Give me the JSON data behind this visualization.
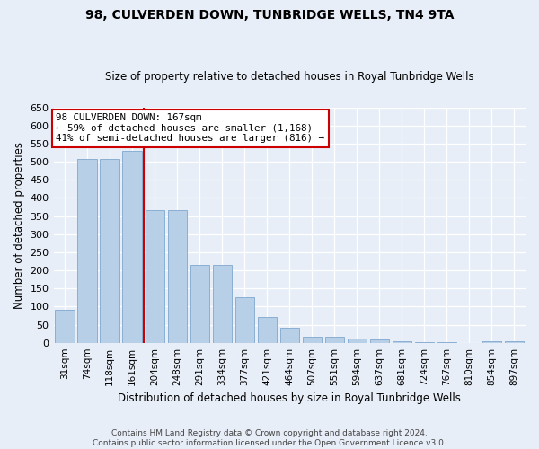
{
  "title": "98, CULVERDEN DOWN, TUNBRIDGE WELLS, TN4 9TA",
  "subtitle": "Size of property relative to detached houses in Royal Tunbridge Wells",
  "xlabel": "Distribution of detached houses by size in Royal Tunbridge Wells",
  "ylabel": "Number of detached properties",
  "footer1": "Contains HM Land Registry data © Crown copyright and database right 2024.",
  "footer2": "Contains public sector information licensed under the Open Government Licence v3.0.",
  "categories": [
    "31sqm",
    "74sqm",
    "118sqm",
    "161sqm",
    "204sqm",
    "248sqm",
    "291sqm",
    "334sqm",
    "377sqm",
    "421sqm",
    "464sqm",
    "507sqm",
    "551sqm",
    "594sqm",
    "637sqm",
    "681sqm",
    "724sqm",
    "767sqm",
    "810sqm",
    "854sqm",
    "897sqm"
  ],
  "bar_heights": [
    90,
    507,
    507,
    530,
    365,
    365,
    215,
    215,
    125,
    70,
    42,
    17,
    17,
    11,
    9,
    5,
    2,
    2,
    0,
    5,
    5
  ],
  "bar_color": "#b8cfe8",
  "bar_edge_color": "#8aafd4",
  "bg_color": "#e8eef8",
  "grid_color": "#ffffff",
  "vline_index": 3,
  "vline_color": "#cc0000",
  "annotation_line1": "98 CULVERDEN DOWN: 167sqm",
  "annotation_line2": "← 59% of detached houses are smaller (1,168)",
  "annotation_line3": "41% of semi-detached houses are larger (816) →",
  "annotation_box_facecolor": "#ffffff",
  "annotation_box_edgecolor": "#cc0000",
  "ylim": [
    0,
    650
  ],
  "yticks": [
    0,
    50,
    100,
    150,
    200,
    250,
    300,
    350,
    400,
    450,
    500,
    550,
    600,
    650
  ]
}
